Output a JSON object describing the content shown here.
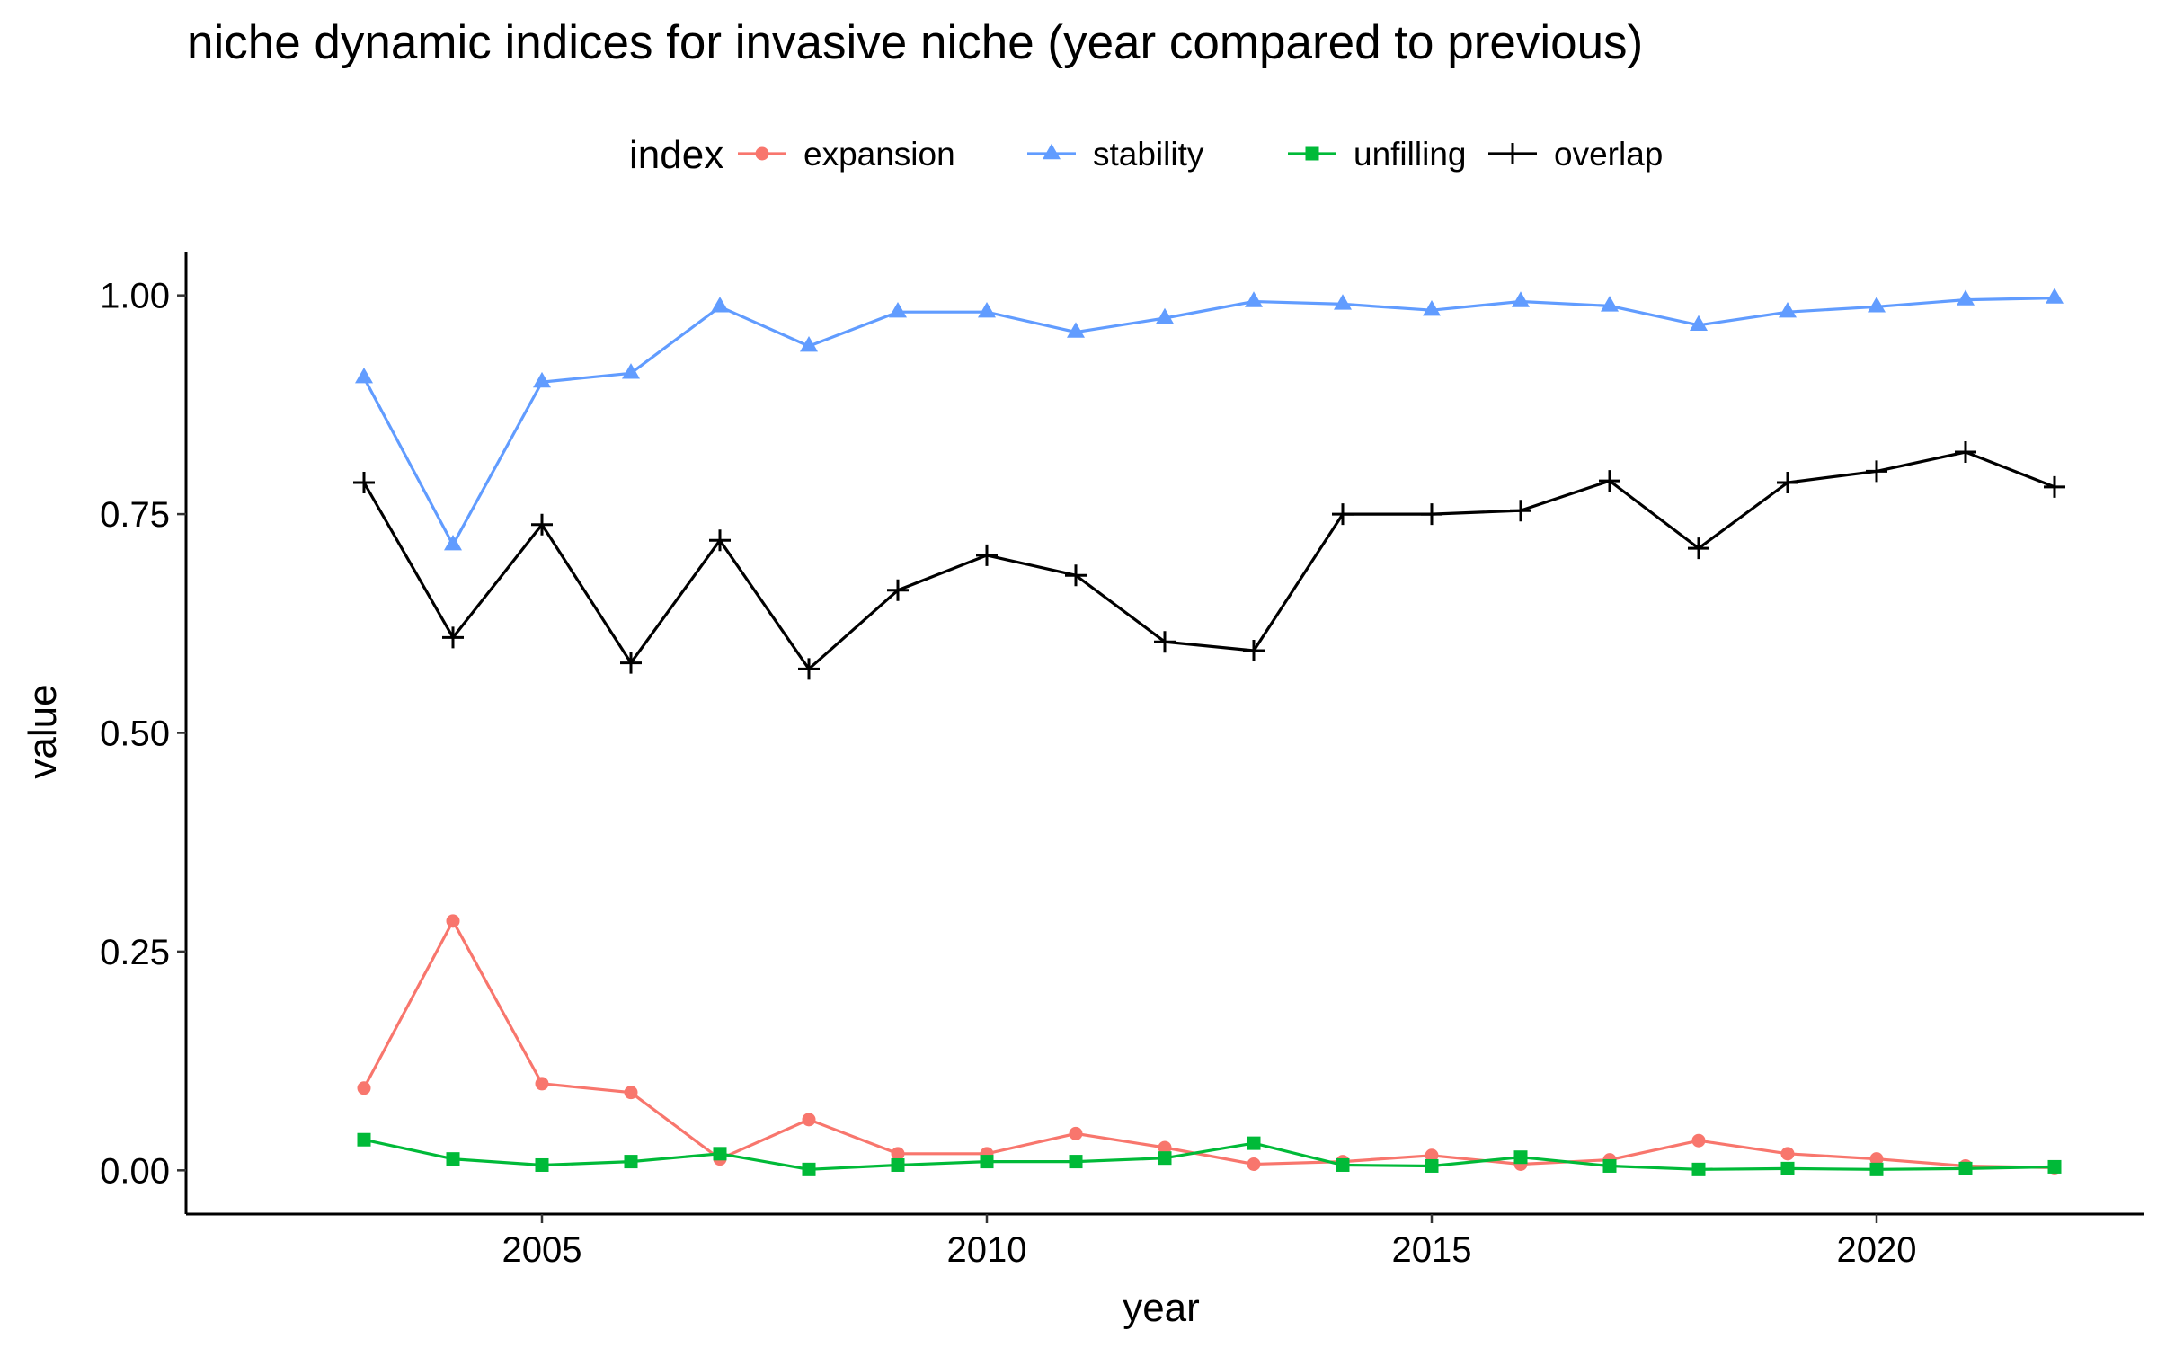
{
  "chart_data": {
    "type": "line",
    "title": "niche dynamic indices for invasive niche (year compared to previous)",
    "xlabel": "year",
    "ylabel": "value",
    "legend_title": "index",
    "legend_position": "top",
    "grid": false,
    "xlim": [
      2001,
      2023
    ],
    "ylim": [
      -0.05,
      1.05
    ],
    "x_ticks": [
      2005,
      2010,
      2015,
      2020
    ],
    "y_ticks": [
      0,
      0.25,
      0.5,
      0.75,
      1
    ],
    "y_tick_labels": [
      "0.00",
      "0.25",
      "0.50",
      "0.75",
      "1.00"
    ],
    "x": [
      2003,
      2004,
      2005,
      2006,
      2007,
      2008,
      2009,
      2010,
      2011,
      2012,
      2013,
      2014,
      2015,
      2016,
      2017,
      2018,
      2019,
      2020,
      2021,
      2022
    ],
    "series": [
      {
        "name": "expansion",
        "color": "#F8766D",
        "marker": "circle",
        "values": [
          0.094,
          0.285,
          0.099,
          0.089,
          0.013,
          0.058,
          0.019,
          0.019,
          0.042,
          0.026,
          0.007,
          0.01,
          0.017,
          0.007,
          0.012,
          0.034,
          0.019,
          0.013,
          0.005,
          0.003
        ]
      },
      {
        "name": "stability",
        "color": "#619CFF",
        "marker": "triangle",
        "values": [
          0.906,
          0.715,
          0.901,
          0.911,
          0.987,
          0.942,
          0.981,
          0.981,
          0.958,
          0.974,
          0.993,
          0.99,
          0.983,
          0.993,
          0.988,
          0.966,
          0.981,
          0.987,
          0.995,
          0.997
        ]
      },
      {
        "name": "unfilling",
        "color": "#00BA38",
        "marker": "square",
        "values": [
          0.035,
          0.013,
          0.006,
          0.01,
          0.019,
          0.001,
          0.006,
          0.01,
          0.01,
          0.014,
          0.031,
          0.006,
          0.005,
          0.015,
          0.005,
          0.001,
          0.002,
          0.001,
          0.002,
          0.004
        ]
      },
      {
        "name": "overlap",
        "color": "#000000",
        "marker": "plus",
        "values": [
          0.786,
          0.609,
          0.738,
          0.58,
          0.72,
          0.573,
          0.663,
          0.703,
          0.68,
          0.604,
          0.594,
          0.75,
          0.75,
          0.754,
          0.788,
          0.711,
          0.786,
          0.799,
          0.821,
          0.781
        ]
      }
    ]
  }
}
